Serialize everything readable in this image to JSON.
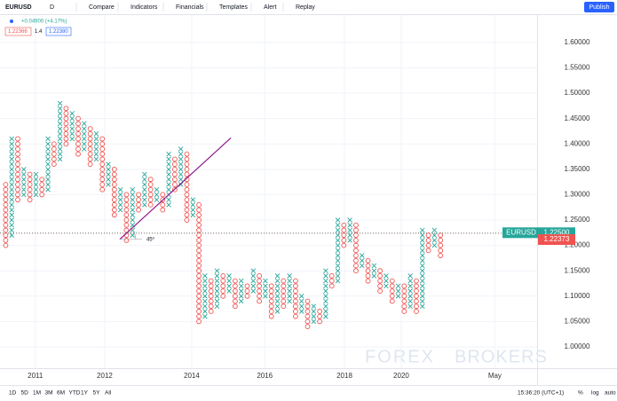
{
  "toolbar": {
    "symbol": "EURUSD",
    "interval": "D",
    "items": [
      "Compare",
      "Indicators",
      "Financials",
      "Templates",
      "Alert",
      "Replay"
    ],
    "publish": "Publish"
  },
  "legend": {
    "change": "+0.04900 (+4.17%)",
    "bid": "1.22366",
    "setting": "1.4",
    "ask": "1.22380"
  },
  "bottom_bar": {
    "ranges": [
      "1D",
      "5D",
      "1M",
      "3M",
      "6M",
      "YTD",
      "1Y",
      "5Y",
      "All"
    ],
    "time": "15:36:20 (UTC+1)",
    "options": [
      "%",
      "log",
      "auto"
    ]
  },
  "watermark": [
    "FOREX",
    "BROKERS"
  ],
  "chart_data": {
    "type": "pnf",
    "x_color": "#26a69a",
    "o_color": "#ef5350",
    "columns": [
      {
        "mark": "o",
        "low": 1.2,
        "high": 1.32
      },
      {
        "mark": "x",
        "low": 1.22,
        "high": 1.41
      },
      {
        "mark": "o",
        "low": 1.29,
        "high": 1.41
      },
      {
        "mark": "x",
        "low": 1.3,
        "high": 1.35
      },
      {
        "mark": "o",
        "low": 1.29,
        "high": 1.34
      },
      {
        "mark": "x",
        "low": 1.3,
        "high": 1.34
      },
      {
        "mark": "o",
        "low": 1.3,
        "high": 1.33
      },
      {
        "mark": "x",
        "low": 1.31,
        "high": 1.41
      },
      {
        "mark": "o",
        "low": 1.36,
        "high": 1.4
      },
      {
        "mark": "x",
        "low": 1.37,
        "high": 1.48
      },
      {
        "mark": "o",
        "low": 1.4,
        "high": 1.47
      },
      {
        "mark": "x",
        "low": 1.41,
        "high": 1.46
      },
      {
        "mark": "o",
        "low": 1.38,
        "high": 1.45
      },
      {
        "mark": "x",
        "low": 1.39,
        "high": 1.44
      },
      {
        "mark": "o",
        "low": 1.36,
        "high": 1.43
      },
      {
        "mark": "x",
        "low": 1.37,
        "high": 1.42
      },
      {
        "mark": "o",
        "low": 1.31,
        "high": 1.41
      },
      {
        "mark": "x",
        "low": 1.32,
        "high": 1.36
      },
      {
        "mark": "o",
        "low": 1.26,
        "high": 1.35
      },
      {
        "mark": "x",
        "low": 1.27,
        "high": 1.31
      },
      {
        "mark": "o",
        "low": 1.21,
        "high": 1.3
      },
      {
        "mark": "x",
        "low": 1.22,
        "high": 1.31
      },
      {
        "mark": "o",
        "low": 1.27,
        "high": 1.3
      },
      {
        "mark": "x",
        "low": 1.28,
        "high": 1.34
      },
      {
        "mark": "o",
        "low": 1.28,
        "high": 1.33
      },
      {
        "mark": "x",
        "low": 1.29,
        "high": 1.31
      },
      {
        "mark": "o",
        "low": 1.27,
        "high": 1.3
      },
      {
        "mark": "x",
        "low": 1.28,
        "high": 1.38
      },
      {
        "mark": "o",
        "low": 1.31,
        "high": 1.37
      },
      {
        "mark": "x",
        "low": 1.32,
        "high": 1.39
      },
      {
        "mark": "o",
        "low": 1.25,
        "high": 1.38
      },
      {
        "mark": "x",
        "low": 1.26,
        "high": 1.29
      },
      {
        "mark": "o",
        "low": 1.05,
        "high": 1.28
      },
      {
        "mark": "x",
        "low": 1.06,
        "high": 1.14
      },
      {
        "mark": "o",
        "low": 1.07,
        "high": 1.13
      },
      {
        "mark": "x",
        "low": 1.08,
        "high": 1.15
      },
      {
        "mark": "o",
        "low": 1.1,
        "high": 1.14
      },
      {
        "mark": "x",
        "low": 1.11,
        "high": 1.14
      },
      {
        "mark": "o",
        "low": 1.08,
        "high": 1.13
      },
      {
        "mark": "x",
        "low": 1.09,
        "high": 1.13
      },
      {
        "mark": "o",
        "low": 1.1,
        "high": 1.12
      },
      {
        "mark": "x",
        "low": 1.11,
        "high": 1.15
      },
      {
        "mark": "o",
        "low": 1.09,
        "high": 1.14
      },
      {
        "mark": "x",
        "low": 1.1,
        "high": 1.13
      },
      {
        "mark": "o",
        "low": 1.06,
        "high": 1.12
      },
      {
        "mark": "x",
        "low": 1.07,
        "high": 1.14
      },
      {
        "mark": "o",
        "low": 1.08,
        "high": 1.13
      },
      {
        "mark": "x",
        "low": 1.09,
        "high": 1.14
      },
      {
        "mark": "o",
        "low": 1.06,
        "high": 1.13
      },
      {
        "mark": "x",
        "low": 1.07,
        "high": 1.1
      },
      {
        "mark": "o",
        "low": 1.04,
        "high": 1.09
      },
      {
        "mark": "x",
        "low": 1.05,
        "high": 1.08
      },
      {
        "mark": "o",
        "low": 1.05,
        "high": 1.07
      },
      {
        "mark": "x",
        "low": 1.06,
        "high": 1.15
      },
      {
        "mark": "o",
        "low": 1.12,
        "high": 1.14
      },
      {
        "mark": "x",
        "low": 1.13,
        "high": 1.25
      },
      {
        "mark": "o",
        "low": 1.2,
        "high": 1.24
      },
      {
        "mark": "x",
        "low": 1.21,
        "high": 1.25
      },
      {
        "mark": "o",
        "low": 1.15,
        "high": 1.24
      },
      {
        "mark": "x",
        "low": 1.16,
        "high": 1.18
      },
      {
        "mark": "o",
        "low": 1.13,
        "high": 1.17
      },
      {
        "mark": "x",
        "low": 1.14,
        "high": 1.16
      },
      {
        "mark": "o",
        "low": 1.11,
        "high": 1.15
      },
      {
        "mark": "x",
        "low": 1.12,
        "high": 1.14
      },
      {
        "mark": "o",
        "low": 1.09,
        "high": 1.13
      },
      {
        "mark": "x",
        "low": 1.1,
        "high": 1.12
      },
      {
        "mark": "o",
        "low": 1.07,
        "high": 1.12
      },
      {
        "mark": "x",
        "low": 1.08,
        "high": 1.14
      },
      {
        "mark": "o",
        "low": 1.07,
        "high": 1.13
      },
      {
        "mark": "x",
        "low": 1.08,
        "high": 1.23
      },
      {
        "mark": "o",
        "low": 1.19,
        "high": 1.22
      },
      {
        "mark": "x",
        "low": 1.2,
        "high": 1.23
      },
      {
        "mark": "o",
        "low": 1.18,
        "high": 1.22
      }
    ],
    "xlim": [
      0,
      88.5
    ],
    "xticks": [
      {
        "value": 5.4,
        "label": "2011"
      },
      {
        "value": 16.9,
        "label": "2012"
      },
      {
        "value": 31.3,
        "label": "2014"
      },
      {
        "value": 43.4,
        "label": "2016"
      },
      {
        "value": 56.6,
        "label": "2018"
      },
      {
        "value": 66.0,
        "label": "2020"
      },
      {
        "value": 81.5,
        "label": "May"
      }
    ],
    "ylim": [
      0.958,
      1.654
    ],
    "yticks": [
      {
        "value": 1.0,
        "label": "1.00000"
      },
      {
        "value": 1.05,
        "label": "1.05000"
      },
      {
        "value": 1.1,
        "label": "1.10000"
      },
      {
        "value": 1.15,
        "label": "1.15000"
      },
      {
        "value": 1.2,
        "label": "1.20000"
      },
      {
        "value": 1.25,
        "label": "1.25000"
      },
      {
        "value": 1.3,
        "label": "1.30000"
      },
      {
        "value": 1.35,
        "label": "1.35000"
      },
      {
        "value": 1.4,
        "label": "1.40000"
      },
      {
        "value": 1.45,
        "label": "1.45000"
      },
      {
        "value": 1.5,
        "label": "1.50000"
      },
      {
        "value": 1.55,
        "label": "1.55000"
      },
      {
        "value": 1.6,
        "label": "1.60000"
      }
    ],
    "price_labels": [
      {
        "symbol": "EURUSD",
        "value": 1.225,
        "label": "1.22500",
        "color": "#26a69a"
      },
      {
        "value": 1.22373,
        "label": "1.22373",
        "color": "#ef5350"
      }
    ],
    "trend_line": {
      "x": [
        19.4,
        37.8
      ],
      "y": [
        1.212,
        1.412
      ],
      "color": "#8e1b8e",
      "angle_label": "45º"
    }
  }
}
